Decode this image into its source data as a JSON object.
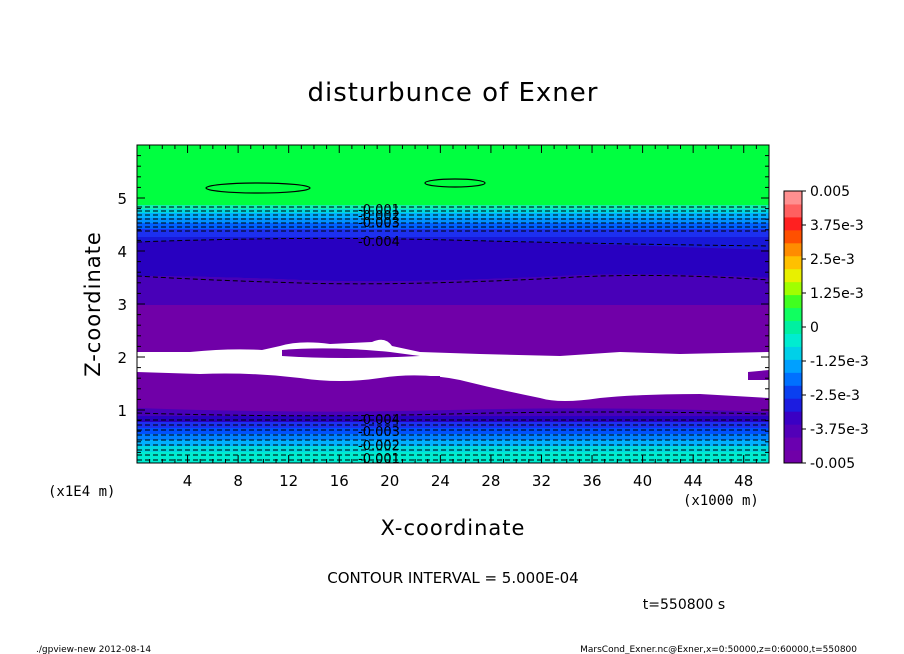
{
  "chart_data": {
    "type": "heatmap",
    "title": "disturbunce of Exner",
    "xlabel": "X-coordinate",
    "ylabel": "Z-coordinate",
    "x_unit_left": "(x1E4 m)",
    "x_unit_right": "(x1000 m)",
    "xlim": [
      0,
      50
    ],
    "ylim": [
      0,
      6
    ],
    "xticks": [
      "4",
      "8",
      "12",
      "16",
      "20",
      "24",
      "28",
      "32",
      "36",
      "40",
      "44",
      "48"
    ],
    "yticks": [
      "1",
      "2",
      "3",
      "4",
      "5"
    ],
    "colorbar": {
      "labels": [
        "0.005",
        "3.75e-3",
        "2.5e-3",
        "1.25e-3",
        "0",
        "-1.25e-3",
        "-2.5e-3",
        "-3.75e-3",
        "-0.005"
      ],
      "range": [
        -0.005,
        0.005
      ],
      "colors": [
        "#7000a8",
        "#6a00b0",
        "#5200b8",
        "#3a00c4",
        "#1c1ce0",
        "#0a40f0",
        "#0070ff",
        "#00a0ff",
        "#00d0e8",
        "#00ecd0",
        "#00f0a0",
        "#10ff60",
        "#40ff20",
        "#a0ff00",
        "#e8f000",
        "#ffc000",
        "#ff8c00",
        "#ff5000",
        "#ff2020",
        "#ff6060",
        "#ff9090"
      ]
    },
    "contour_labels_upper": [
      "-0.001",
      "-0.002",
      "-0.003",
      "-0.004"
    ],
    "contour_labels_lower": [
      "-0.004",
      "-0.003",
      "-0.002",
      "-0.001"
    ],
    "contour_interval": "CONTOUR INTERVAL = 5.000E-04",
    "time_label": "t=550800 s"
  },
  "footer": {
    "left": "./gpview-new  2012-08-14",
    "right": "MarsCond_Exner.nc@Exner,x=0:50000,z=0:60000,t=550800"
  },
  "colors": {
    "green": "#00ff40",
    "purple": "#7000a8",
    "white": "#ffffff"
  }
}
